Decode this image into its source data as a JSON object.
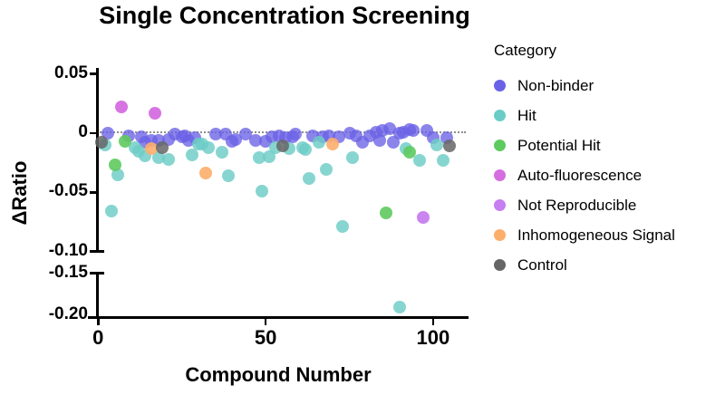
{
  "title": "Single Concentration Screening",
  "legend": {
    "title": "Category"
  },
  "colors": {
    "non_binder": "#6a62e6",
    "hit": "#6cccc6",
    "potential_hit": "#5fca5f",
    "auto_fluorescence": "#d46ee0",
    "not_reproducible": "#c77ef0",
    "inhomogeneous_signal": "#fcae6b",
    "control": "#666666",
    "zero_line": "#8f8f8f",
    "axis": "#000000"
  },
  "chart_data": {
    "type": "scatter",
    "title": "Single Concentration Screening",
    "xlabel": "Compound Number",
    "ylabel": "ΔRatio",
    "xlim": [
      0,
      110
    ],
    "ylim_upper_segment": [
      -0.1,
      0.05
    ],
    "ylim_lower_segment": [
      -0.2,
      -0.15
    ],
    "axis_break": true,
    "zero_line_dotted": true,
    "legend_position": "right",
    "x_axis": {
      "ticks": [
        {
          "label": "0",
          "c": 0
        },
        {
          "label": "50",
          "c": 50
        },
        {
          "label": "100",
          "c": 100
        }
      ]
    },
    "y_axis": {
      "upper_ticks": [
        {
          "label": "0.05",
          "v": 0.05
        },
        {
          "label": "0",
          "v": 0
        },
        {
          "label": "-0.05",
          "v": -0.05
        },
        {
          "label": "-0.10",
          "v": -0.1,
          "cap": true
        }
      ],
      "lower_ticks": [
        {
          "label": "-0.15",
          "v": -0.15,
          "cap": true
        },
        {
          "label": "-0.20",
          "v": -0.2,
          "noTick": true
        }
      ]
    },
    "series": [
      {
        "name": "Non-binder",
        "key": "non-binder",
        "color": "#6a62e6",
        "opacity": 0.78,
        "points": [
          [
            3,
            0.0
          ],
          [
            9,
            -0.002
          ],
          [
            13,
            -0.003
          ],
          [
            14,
            -0.008
          ],
          [
            16,
            -0.006
          ],
          [
            18,
            -0.006
          ],
          [
            21,
            -0.005
          ],
          [
            23,
            -0.001
          ],
          [
            25,
            -0.003
          ],
          [
            26,
            -0.002
          ],
          [
            27,
            -0.006
          ],
          [
            29,
            -0.004
          ],
          [
            35,
            -0.001
          ],
          [
            38,
            -0.001
          ],
          [
            40,
            -0.007
          ],
          [
            41,
            -0.005
          ],
          [
            44,
            -0.001
          ],
          [
            47,
            -0.006
          ],
          [
            50,
            -0.007
          ],
          [
            52,
            -0.003
          ],
          [
            54,
            -0.002
          ],
          [
            56,
            -0.004
          ],
          [
            58,
            -0.003
          ],
          [
            59,
            -0.001
          ],
          [
            64,
            -0.002
          ],
          [
            67,
            -0.003
          ],
          [
            69,
            -0.002
          ],
          [
            72,
            -0.003
          ],
          [
            75,
            0.0
          ],
          [
            77,
            -0.002
          ],
          [
            79,
            -0.008
          ],
          [
            81,
            -0.002
          ],
          [
            83,
            0.001
          ],
          [
            84,
            -0.006
          ],
          [
            85,
            0.002
          ],
          [
            87,
            0.004
          ],
          [
            88,
            -0.008
          ],
          [
            90,
            0.0
          ],
          [
            91,
            0.001
          ],
          [
            93,
            0.003
          ],
          [
            94,
            0.002
          ],
          [
            98,
            0.002
          ],
          [
            100,
            -0.004
          ],
          [
            104,
            -0.004
          ]
        ]
      },
      {
        "name": "Hit",
        "key": "hit",
        "color": "#6cccc6",
        "opacity": 0.82,
        "points": [
          [
            2,
            -0.01
          ],
          [
            4,
            -0.066
          ],
          [
            6,
            -0.035
          ],
          [
            11,
            -0.012
          ],
          [
            12,
            -0.015
          ],
          [
            14,
            -0.019
          ],
          [
            18,
            -0.021
          ],
          [
            21,
            -0.022
          ],
          [
            28,
            -0.018
          ],
          [
            30,
            -0.009
          ],
          [
            31,
            -0.009
          ],
          [
            33,
            -0.012
          ],
          [
            37,
            -0.016
          ],
          [
            39,
            -0.036
          ],
          [
            48,
            -0.021
          ],
          [
            49,
            -0.049
          ],
          [
            51,
            -0.02
          ],
          [
            53,
            -0.012
          ],
          [
            57,
            -0.013
          ],
          [
            61,
            -0.012
          ],
          [
            62,
            -0.014
          ],
          [
            63,
            -0.038
          ],
          [
            66,
            -0.008
          ],
          [
            68,
            -0.031
          ],
          [
            73,
            -0.079
          ],
          [
            76,
            -0.021
          ],
          [
            90,
            -0.188
          ],
          [
            92,
            -0.013
          ],
          [
            96,
            -0.023
          ],
          [
            101,
            -0.01
          ],
          [
            103,
            -0.023
          ]
        ]
      },
      {
        "name": "Potential Hit",
        "key": "potential-hit",
        "color": "#5fca5f",
        "opacity": 0.9,
        "points": [
          [
            5,
            -0.027
          ],
          [
            8,
            -0.007
          ],
          [
            86,
            -0.067
          ],
          [
            93,
            -0.016
          ]
        ]
      },
      {
        "name": "Auto-fluorescence",
        "key": "auto-fluorescence",
        "color": "#d46ee0",
        "opacity": 0.95,
        "points": [
          [
            7,
            0.022
          ],
          [
            17,
            0.017
          ]
        ]
      },
      {
        "name": "Not Reproducible",
        "key": "not-reproducible",
        "color": "#c77ef0",
        "opacity": 0.95,
        "points": [
          [
            97,
            -0.071
          ]
        ]
      },
      {
        "name": "Inhomogeneous Signal",
        "key": "inhomogeneous-signal",
        "color": "#fcae6b",
        "opacity": 0.9,
        "points": [
          [
            16,
            -0.013
          ],
          [
            32,
            -0.034
          ],
          [
            70,
            -0.009
          ]
        ]
      },
      {
        "name": "Control",
        "key": "control",
        "color": "#666666",
        "opacity": 0.85,
        "points": [
          [
            1,
            -0.008
          ],
          [
            19,
            -0.012
          ],
          [
            55,
            -0.011
          ],
          [
            105,
            -0.011
          ]
        ]
      }
    ]
  }
}
